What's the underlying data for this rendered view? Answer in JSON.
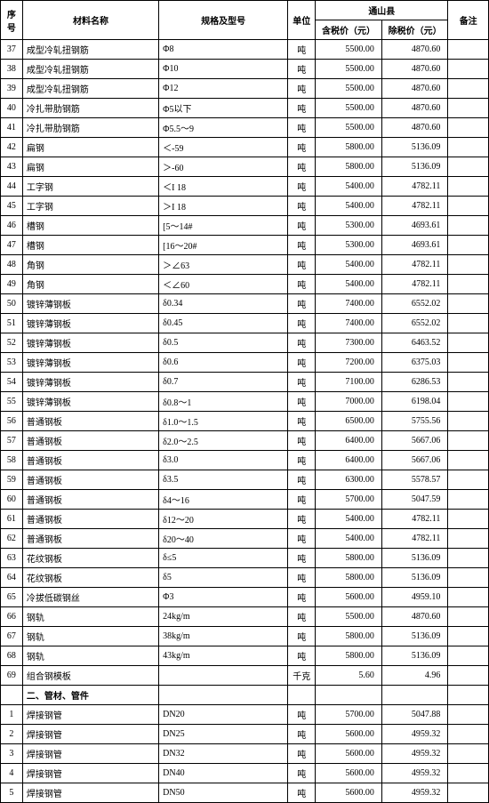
{
  "header": {
    "seq": "序号",
    "name": "材料名称",
    "spec": "规格及型号",
    "unit": "单位",
    "region": "通山县",
    "price_with_tax": "含税价（元）",
    "price_without_tax": "除税价（元）",
    "note": "备注"
  },
  "section_label": "二、管材、管件",
  "rows_a": [
    {
      "seq": "37",
      "name": "成型冷轧扭钢筋",
      "spec": "Φ8",
      "unit": "吨",
      "p1": "5500.00",
      "p2": "4870.60"
    },
    {
      "seq": "38",
      "name": "成型冷轧扭钢筋",
      "spec": "Φ10",
      "unit": "吨",
      "p1": "5500.00",
      "p2": "4870.60"
    },
    {
      "seq": "39",
      "name": "成型冷轧扭钢筋",
      "spec": "Φ12",
      "unit": "吨",
      "p1": "5500.00",
      "p2": "4870.60"
    },
    {
      "seq": "40",
      "name": "冷扎带肋钢筋",
      "spec": "Φ5以下",
      "unit": "吨",
      "p1": "5500.00",
      "p2": "4870.60"
    },
    {
      "seq": "41",
      "name": "冷扎带肋钢筋",
      "spec": "Φ5.5～9",
      "unit": "吨",
      "p1": "5500.00",
      "p2": "4870.60"
    },
    {
      "seq": "42",
      "name": "扁钢",
      "spec": "＜-59",
      "unit": "吨",
      "p1": "5800.00",
      "p2": "5136.09"
    },
    {
      "seq": "43",
      "name": "扁钢",
      "spec": "＞-60",
      "unit": "吨",
      "p1": "5800.00",
      "p2": "5136.09"
    },
    {
      "seq": "44",
      "name": "工字钢",
      "spec": "＜I 18",
      "unit": "吨",
      "p1": "5400.00",
      "p2": "4782.11"
    },
    {
      "seq": "45",
      "name": "工字钢",
      "spec": "＞I 18",
      "unit": "吨",
      "p1": "5400.00",
      "p2": "4782.11"
    },
    {
      "seq": "46",
      "name": "槽钢",
      "spec": "[5～14#",
      "unit": "吨",
      "p1": "5300.00",
      "p2": "4693.61"
    },
    {
      "seq": "47",
      "name": "槽钢",
      "spec": "[16～20#",
      "unit": "吨",
      "p1": "5300.00",
      "p2": "4693.61"
    },
    {
      "seq": "48",
      "name": "角钢",
      "spec": "＞∠63",
      "unit": "吨",
      "p1": "5400.00",
      "p2": "4782.11"
    },
    {
      "seq": "49",
      "name": "角钢",
      "spec": "＜∠60",
      "unit": "吨",
      "p1": "5400.00",
      "p2": "4782.11"
    },
    {
      "seq": "50",
      "name": "镀锌薄钢板",
      "spec": "δ0.34",
      "unit": "吨",
      "p1": "7400.00",
      "p2": "6552.02"
    },
    {
      "seq": "51",
      "name": "镀锌薄钢板",
      "spec": "δ0.45",
      "unit": "吨",
      "p1": "7400.00",
      "p2": "6552.02"
    },
    {
      "seq": "52",
      "name": "镀锌薄钢板",
      "spec": "δ0.5",
      "unit": "吨",
      "p1": "7300.00",
      "p2": "6463.52"
    },
    {
      "seq": "53",
      "name": "镀锌薄钢板",
      "spec": "δ0.6",
      "unit": "吨",
      "p1": "7200.00",
      "p2": "6375.03"
    },
    {
      "seq": "54",
      "name": "镀锌薄钢板",
      "spec": "δ0.7",
      "unit": "吨",
      "p1": "7100.00",
      "p2": "6286.53"
    },
    {
      "seq": "55",
      "name": "镀锌薄钢板",
      "spec": "δ0.8～1",
      "unit": "吨",
      "p1": "7000.00",
      "p2": "6198.04"
    },
    {
      "seq": "56",
      "name": "普通钢板",
      "spec": "δ1.0～1.5",
      "unit": "吨",
      "p1": "6500.00",
      "p2": "5755.56"
    },
    {
      "seq": "57",
      "name": "普通钢板",
      "spec": "δ2.0～2.5",
      "unit": "吨",
      "p1": "6400.00",
      "p2": "5667.06"
    },
    {
      "seq": "58",
      "name": "普通钢板",
      "spec": "δ3.0",
      "unit": "吨",
      "p1": "6400.00",
      "p2": "5667.06"
    },
    {
      "seq": "59",
      "name": "普通钢板",
      "spec": "δ3.5",
      "unit": "吨",
      "p1": "6300.00",
      "p2": "5578.57"
    },
    {
      "seq": "60",
      "name": "普通钢板",
      "spec": "δ4～16",
      "unit": "吨",
      "p1": "5700.00",
      "p2": "5047.59"
    },
    {
      "seq": "61",
      "name": "普通钢板",
      "spec": "δ12～20",
      "unit": "吨",
      "p1": "5400.00",
      "p2": "4782.11"
    },
    {
      "seq": "62",
      "name": "普通钢板",
      "spec": "δ20～40",
      "unit": "吨",
      "p1": "5400.00",
      "p2": "4782.11"
    },
    {
      "seq": "63",
      "name": "花纹钢板",
      "spec": "δ≤5",
      "unit": "吨",
      "p1": "5800.00",
      "p2": "5136.09"
    },
    {
      "seq": "64",
      "name": "花纹钢板",
      "spec": "δ5",
      "unit": "吨",
      "p1": "5800.00",
      "p2": "5136.09"
    },
    {
      "seq": "65",
      "name": "冷拔低碳钢丝",
      "spec": "Φ3",
      "unit": "吨",
      "p1": "5600.00",
      "p2": "4959.10"
    },
    {
      "seq": "66",
      "name": "钢轨",
      "spec": "24kg/m",
      "unit": "吨",
      "p1": "5500.00",
      "p2": "4870.60"
    },
    {
      "seq": "67",
      "name": "钢轨",
      "spec": "38kg/m",
      "unit": "吨",
      "p1": "5800.00",
      "p2": "5136.09"
    },
    {
      "seq": "68",
      "name": "钢轨",
      "spec": "43kg/m",
      "unit": "吨",
      "p1": "5800.00",
      "p2": "5136.09"
    },
    {
      "seq": "69",
      "name": "组合钢模板",
      "spec": "",
      "unit": "千克",
      "p1": "5.60",
      "p2": "4.96"
    }
  ],
  "rows_b": [
    {
      "seq": "1",
      "name": "焊接钢管",
      "spec": "DN20",
      "unit": "吨",
      "p1": "5700.00",
      "p2": "5047.88"
    },
    {
      "seq": "2",
      "name": "焊接钢管",
      "spec": "DN25",
      "unit": "吨",
      "p1": "5600.00",
      "p2": "4959.32"
    },
    {
      "seq": "3",
      "name": "焊接钢管",
      "spec": "DN32",
      "unit": "吨",
      "p1": "5600.00",
      "p2": "4959.32"
    },
    {
      "seq": "4",
      "name": "焊接钢管",
      "spec": "DN40",
      "unit": "吨",
      "p1": "5600.00",
      "p2": "4959.32"
    },
    {
      "seq": "5",
      "name": "焊接钢管",
      "spec": "DN50",
      "unit": "吨",
      "p1": "5600.00",
      "p2": "4959.32"
    }
  ]
}
